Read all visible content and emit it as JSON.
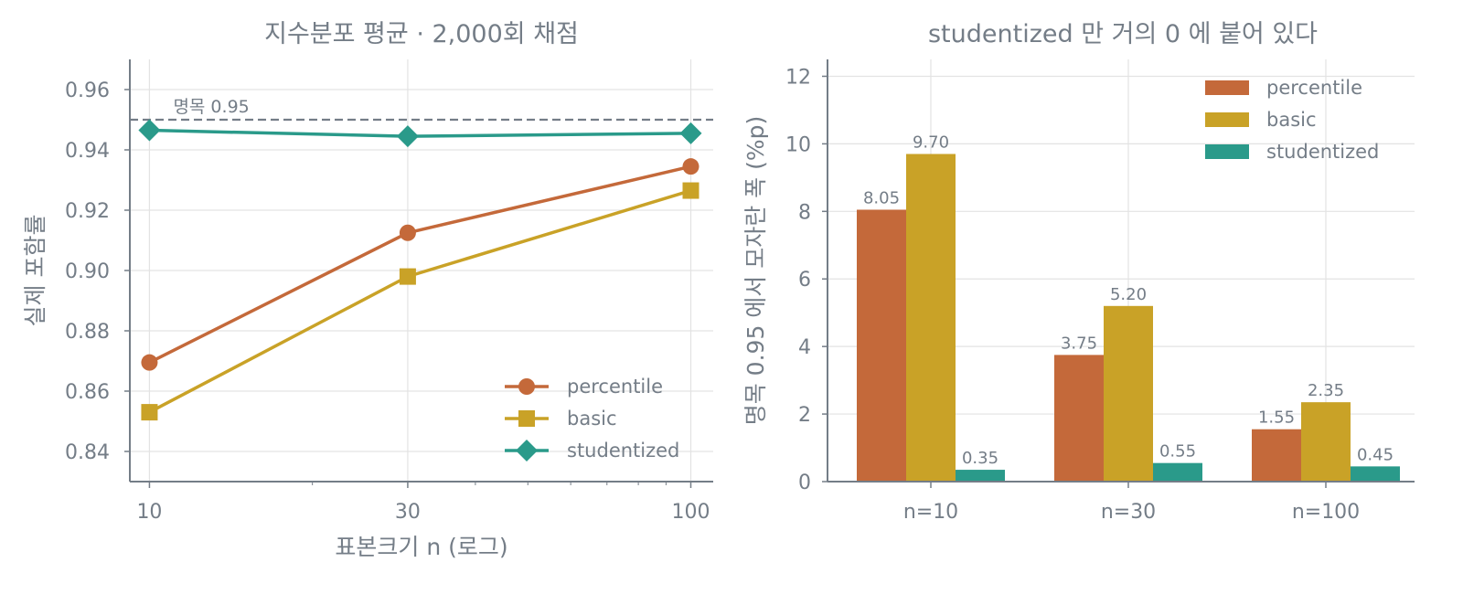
{
  "colors": {
    "percentile": "#c4693a",
    "basic": "#c9a227",
    "studentized": "#2a9a8a",
    "text": "#747d87",
    "axis": "#747d87",
    "grid": "#e3e3e3",
    "nominal_line": "#747d87"
  },
  "chart_data": [
    {
      "type": "line",
      "title": "지수분포 평균 · 2,000회 채점",
      "xlabel": "표본크기 n (로그)",
      "ylabel": "실제 포함률",
      "x_scale": "log",
      "x": [
        10,
        30,
        100
      ],
      "x_ticks": [
        "10",
        "30",
        "100"
      ],
      "xlim": [
        9.2,
        110
      ],
      "ylim": [
        0.83,
        0.97
      ],
      "y_ticks": [
        "0.84",
        "0.86",
        "0.88",
        "0.90",
        "0.92",
        "0.94",
        "0.96"
      ],
      "grid": true,
      "legend_position": "bottom-right",
      "reference_line": {
        "value": 0.95,
        "label": "명목 0.95",
        "style": "dashed"
      },
      "series": [
        {
          "name": "percentile",
          "marker": "circle",
          "values": [
            0.8695,
            0.9125,
            0.9345
          ]
        },
        {
          "name": "basic",
          "marker": "square",
          "values": [
            0.853,
            0.898,
            0.9265
          ]
        },
        {
          "name": "studentized",
          "marker": "diamond",
          "values": [
            0.9465,
            0.9445,
            0.9455
          ]
        }
      ]
    },
    {
      "type": "bar",
      "title": "studentized 만 거의 0 에 붙어 있다",
      "xlabel": "",
      "ylabel": "명목 0.95 에서 모자란 폭 (%p)",
      "categories": [
        "n=10",
        "n=30",
        "n=100"
      ],
      "ylim": [
        0,
        12.5
      ],
      "y_ticks": [
        "0",
        "2",
        "4",
        "6",
        "8",
        "10",
        "12"
      ],
      "grid": true,
      "legend_position": "top-right",
      "series": [
        {
          "name": "percentile",
          "values": [
            8.05,
            3.75,
            1.55
          ],
          "labels": [
            "8.05",
            "3.75",
            "1.55"
          ]
        },
        {
          "name": "basic",
          "values": [
            9.7,
            5.2,
            2.35
          ],
          "labels": [
            "9.70",
            "5.20",
            "2.35"
          ]
        },
        {
          "name": "studentized",
          "values": [
            0.35,
            0.55,
            0.45
          ],
          "labels": [
            "0.35",
            "0.55",
            "0.45"
          ]
        }
      ]
    }
  ]
}
